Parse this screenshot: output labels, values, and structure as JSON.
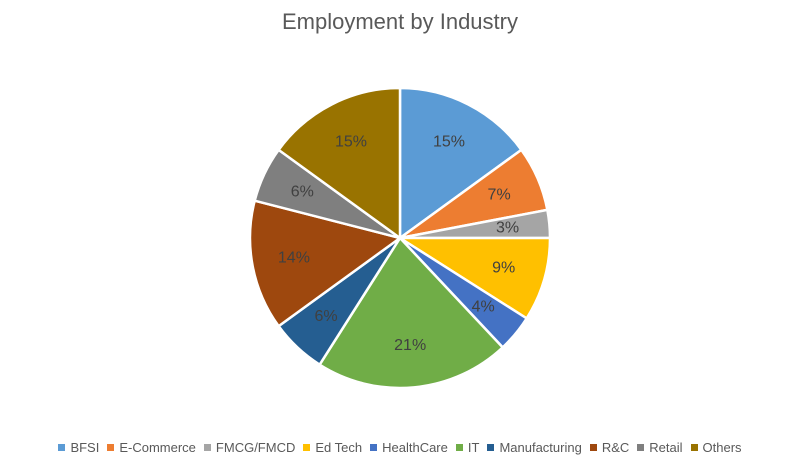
{
  "chart_data": {
    "type": "pie",
    "title": "Employment by Industry",
    "legend_position": "bottom",
    "slices": [
      {
        "name": "BFSI",
        "value": 15,
        "label": "15%",
        "color": "#5B9BD5"
      },
      {
        "name": "E-Commerce",
        "value": 7,
        "label": "7%",
        "color": "#ED7D31"
      },
      {
        "name": "FMCG/FMCD",
        "value": 3,
        "label": "3%",
        "color": "#A5A5A5"
      },
      {
        "name": "Ed Tech",
        "value": 9,
        "label": "9%",
        "color": "#FFC000"
      },
      {
        "name": "HealthCare",
        "value": 4,
        "label": "4%",
        "color": "#4472C4"
      },
      {
        "name": "IT",
        "value": 21,
        "label": "21%",
        "color": "#70AD47"
      },
      {
        "name": "Manufacturing",
        "value": 6,
        "label": "6%",
        "color": "#255E91"
      },
      {
        "name": "R&C",
        "value": 14,
        "label": "14%",
        "color": "#9E480E"
      },
      {
        "name": "Retail",
        "value": 6,
        "label": "6%",
        "color": "#7F7F7F"
      },
      {
        "name": "Others",
        "value": 15,
        "label": "15%",
        "color": "#997300"
      }
    ]
  }
}
